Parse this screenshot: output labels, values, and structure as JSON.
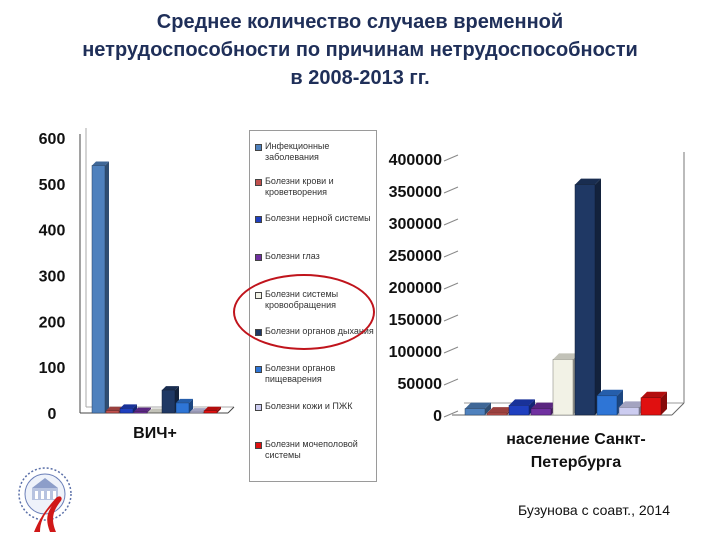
{
  "title_lines": [
    "Среднее количество случаев временной",
    "нетрудоспособности по причинам нетрудоспособности",
    "в 2008-2013 гг."
  ],
  "credit": "Бузунова с соавт., 2014",
  "colors": {
    "title": "#1f2f59",
    "ellipse": "#c0141c"
  },
  "legend": [
    {
      "label": "Инфекционные заболевания",
      "color": "#4f81bd"
    },
    {
      "label": "Болезни крови и кроветворения",
      "color": "#c0504d"
    },
    {
      "label": "Болезни нерной системы",
      "color": "#1f3fbf"
    },
    {
      "label": "Болезни глаз",
      "color": "#7030a0"
    },
    {
      "label": "Болезни системы кровообращения",
      "color": "#f2f2e6"
    },
    {
      "label": "Болезни органов дыхания",
      "color": "#1f3864"
    },
    {
      "label": "Болезни органов пищеварения",
      "color": "#2e75d6"
    },
    {
      "label": "Болезни кожи и ПЖК",
      "color": "#ccccf0"
    },
    {
      "label": "Болезни мочеполовой системы",
      "color": "#e01010"
    }
  ],
  "chart_data": [
    {
      "type": "bar",
      "categories": [
        "ВИЧ+"
      ],
      "ylim": [
        0,
        600
      ],
      "yticks": [
        "0",
        "100",
        "200",
        "300",
        "400",
        "500",
        "600"
      ],
      "series": [
        {
          "name": "Инфекционные заболевания",
          "values": [
            540
          ]
        },
        {
          "name": "Болезни крови и кроветворения",
          "values": [
            5
          ]
        },
        {
          "name": "Болезни нерной системы",
          "values": [
            10
          ]
        },
        {
          "name": "Болезни глаз",
          "values": [
            3
          ]
        },
        {
          "name": "Болезни системы кровообращения",
          "values": [
            1
          ]
        },
        {
          "name": "Болезни органов дыхания",
          "values": [
            50
          ]
        },
        {
          "name": "Болезни органов пищеварения",
          "values": [
            22
          ]
        },
        {
          "name": "Болезни кожи и ПЖК",
          "values": [
            2
          ]
        },
        {
          "name": "Болезни мочеполовой системы",
          "values": [
            5
          ]
        }
      ]
    },
    {
      "type": "bar",
      "categories": [
        "население Санкт-Петербурга"
      ],
      "category_lines": [
        "население Санкт-",
        "Петербурга"
      ],
      "ylim": [
        0,
        400000
      ],
      "yticks": [
        "0",
        "50000",
        "100000",
        "150000",
        "200000",
        "250000",
        "300000",
        "350000",
        "400000"
      ],
      "series": [
        {
          "name": "Инфекционные заболевания",
          "values": [
            10000
          ]
        },
        {
          "name": "Болезни крови и кроветворения",
          "values": [
            3000
          ]
        },
        {
          "name": "Болезни нерной системы",
          "values": [
            15000
          ]
        },
        {
          "name": "Болезни глаз",
          "values": [
            10000
          ]
        },
        {
          "name": "Болезни системы кровообращения",
          "values": [
            87000
          ]
        },
        {
          "name": "Болезни органов дыхания",
          "values": [
            360000
          ]
        },
        {
          "name": "Болезни органов пищеварения",
          "values": [
            30000
          ]
        },
        {
          "name": "Болезни кожи и ПЖК",
          "values": [
            12000
          ]
        },
        {
          "name": "Болезни мочеполовой системы",
          "values": [
            27000
          ]
        }
      ]
    }
  ]
}
